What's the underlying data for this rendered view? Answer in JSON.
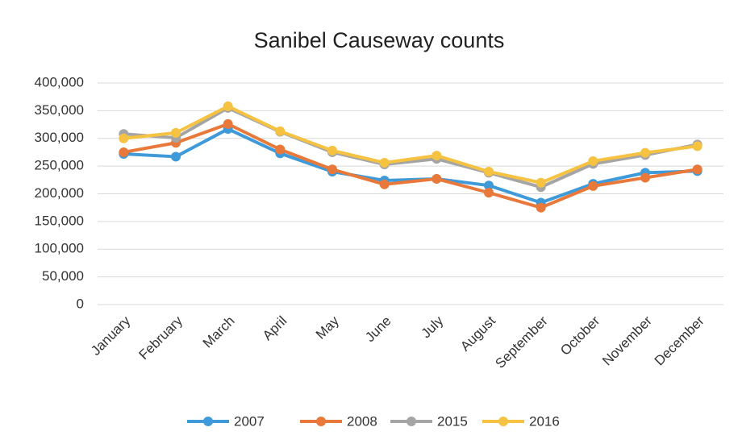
{
  "chart_data": {
    "type": "line",
    "title": "Sanibel Causeway counts",
    "categories": [
      "January",
      "February",
      "March",
      "April",
      "May",
      "June",
      "July",
      "August",
      "September",
      "October",
      "November",
      "December"
    ],
    "series": [
      {
        "name": "2007",
        "color": "#3e9ad8",
        "values": [
          272000,
          267000,
          317000,
          273000,
          240000,
          224000,
          227000,
          215000,
          184000,
          218000,
          238000,
          241000
        ]
      },
      {
        "name": "2008",
        "color": "#e8793a",
        "values": [
          275000,
          292000,
          326000,
          280000,
          244000,
          217000,
          227000,
          202000,
          175000,
          214000,
          229000,
          244000
        ]
      },
      {
        "name": "2015",
        "color": "#a5a5a5",
        "values": [
          308000,
          301000,
          355000,
          312000,
          275000,
          253000,
          263000,
          238000,
          212000,
          254000,
          270000,
          289000
        ]
      },
      {
        "name": "2016",
        "color": "#f5c242",
        "values": [
          300000,
          310000,
          358000,
          313000,
          278000,
          256000,
          269000,
          240000,
          220000,
          259000,
          274000,
          286000
        ]
      }
    ],
    "ylim": [
      0,
      400000
    ],
    "yticks": [
      0,
      {
        "value": 50000,
        "label": "50,000"
      },
      {
        "value": 100000,
        "label": "100,000"
      },
      {
        "value": 150000,
        "label": "150,000"
      },
      {
        "value": 200000,
        "label": "200,000"
      },
      {
        "value": 250000,
        "label": "250,000"
      },
      {
        "value": 300000,
        "label": "300,000"
      },
      {
        "value": 350000,
        "label": "350,000"
      },
      {
        "value": 400000,
        "label": "400,000"
      }
    ],
    "grid": true,
    "legend": "bottom"
  }
}
